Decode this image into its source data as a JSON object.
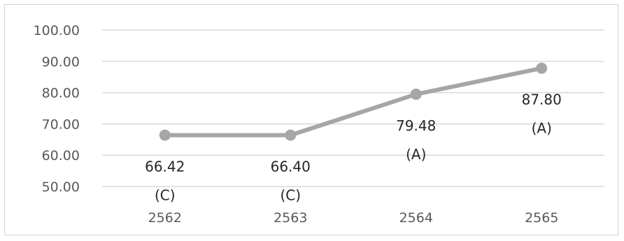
{
  "chart_data": {
    "type": "line",
    "categories": [
      "2562",
      "2563",
      "2564",
      "2565"
    ],
    "series": [
      {
        "values": [
          66.42,
          66.4,
          79.48,
          87.8
        ],
        "grades": [
          "(C)",
          "(C)",
          "(A)",
          "(A)"
        ],
        "color": "#a6a6a6"
      }
    ],
    "y_ticks": [
      "100.00",
      "90.00",
      "80.00",
      "70.00",
      "60.00",
      "50.00"
    ],
    "ylim": [
      50,
      100
    ],
    "title": "",
    "xlabel": "",
    "ylabel": "",
    "grid": true,
    "gridline_color": "#d9d9d9",
    "data_label_color": "#262626",
    "tick_label_color": "#595959"
  }
}
